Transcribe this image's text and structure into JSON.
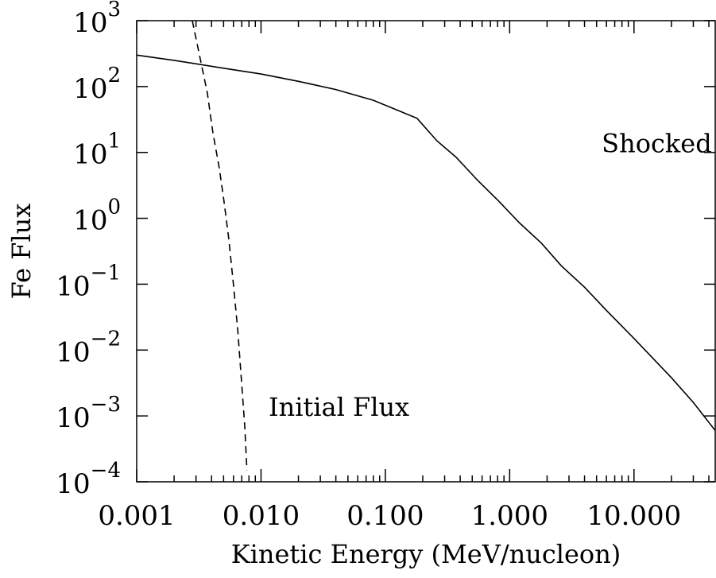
{
  "chart_data": {
    "type": "line",
    "title": "",
    "xlabel": "Kinetic Energy (MeV/nucleon)",
    "ylabel": "Fe Flux",
    "xscale": "log",
    "yscale": "log",
    "xlim": [
      0.001,
      45
    ],
    "ylim": [
      0.0001,
      1000
    ],
    "x_tick_values": [
      0.001,
      0.01,
      0.1,
      1,
      10
    ],
    "x_tick_labels": [
      "0.001",
      "0.010",
      "0.100",
      "1.000",
      "10.000"
    ],
    "y_tick_values": [
      0.0001,
      0.001,
      0.01,
      0.1,
      1,
      10,
      100,
      1000
    ],
    "y_tick_labels": [
      {
        "base": "10",
        "exp": "−4"
      },
      {
        "base": "10",
        "exp": "−3"
      },
      {
        "base": "10",
        "exp": "−2"
      },
      {
        "base": "10",
        "exp": "−1"
      },
      {
        "base": "10",
        "exp": "0"
      },
      {
        "base": "10",
        "exp": "1"
      },
      {
        "base": "10",
        "exp": "2"
      },
      {
        "base": "10",
        "exp": "3"
      }
    ],
    "grid": false,
    "series": [
      {
        "style": "solid",
        "color": "#000000",
        "points": [
          [
            0.001,
            300
          ],
          [
            0.002,
            250
          ],
          [
            0.005,
            190
          ],
          [
            0.01,
            155
          ],
          [
            0.02,
            120
          ],
          [
            0.04,
            90
          ],
          [
            0.08,
            62
          ],
          [
            0.18,
            33
          ],
          [
            0.26,
            15
          ],
          [
            0.37,
            8.5
          ],
          [
            0.55,
            3.8
          ],
          [
            0.8,
            1.9
          ],
          [
            1.2,
            0.85
          ],
          [
            1.8,
            0.42
          ],
          [
            2.6,
            0.19
          ],
          [
            4.0,
            0.09
          ],
          [
            6.0,
            0.04
          ],
          [
            10,
            0.015
          ],
          [
            20,
            0.0038
          ],
          [
            30,
            0.0016
          ],
          [
            45,
            0.0006
          ]
        ]
      },
      {
        "style": "dashed",
        "color": "#000000",
        "points": [
          [
            0.0028,
            1000
          ],
          [
            0.0032,
            300
          ],
          [
            0.0037,
            80
          ],
          [
            0.0041,
            20
          ],
          [
            0.0046,
            6
          ],
          [
            0.005,
            2
          ],
          [
            0.0055,
            0.5
          ],
          [
            0.006,
            0.1
          ],
          [
            0.0065,
            0.02
          ],
          [
            0.007,
            0.003
          ],
          [
            0.0074,
            0.0007
          ],
          [
            0.0077,
            0.00015
          ]
        ]
      }
    ],
    "annotations": [
      {
        "text": "Shocked Flux",
        "x": 5.5,
        "y": 10
      },
      {
        "text": "Initial Flux",
        "x": 0.0115,
        "y": 0.001
      }
    ]
  }
}
